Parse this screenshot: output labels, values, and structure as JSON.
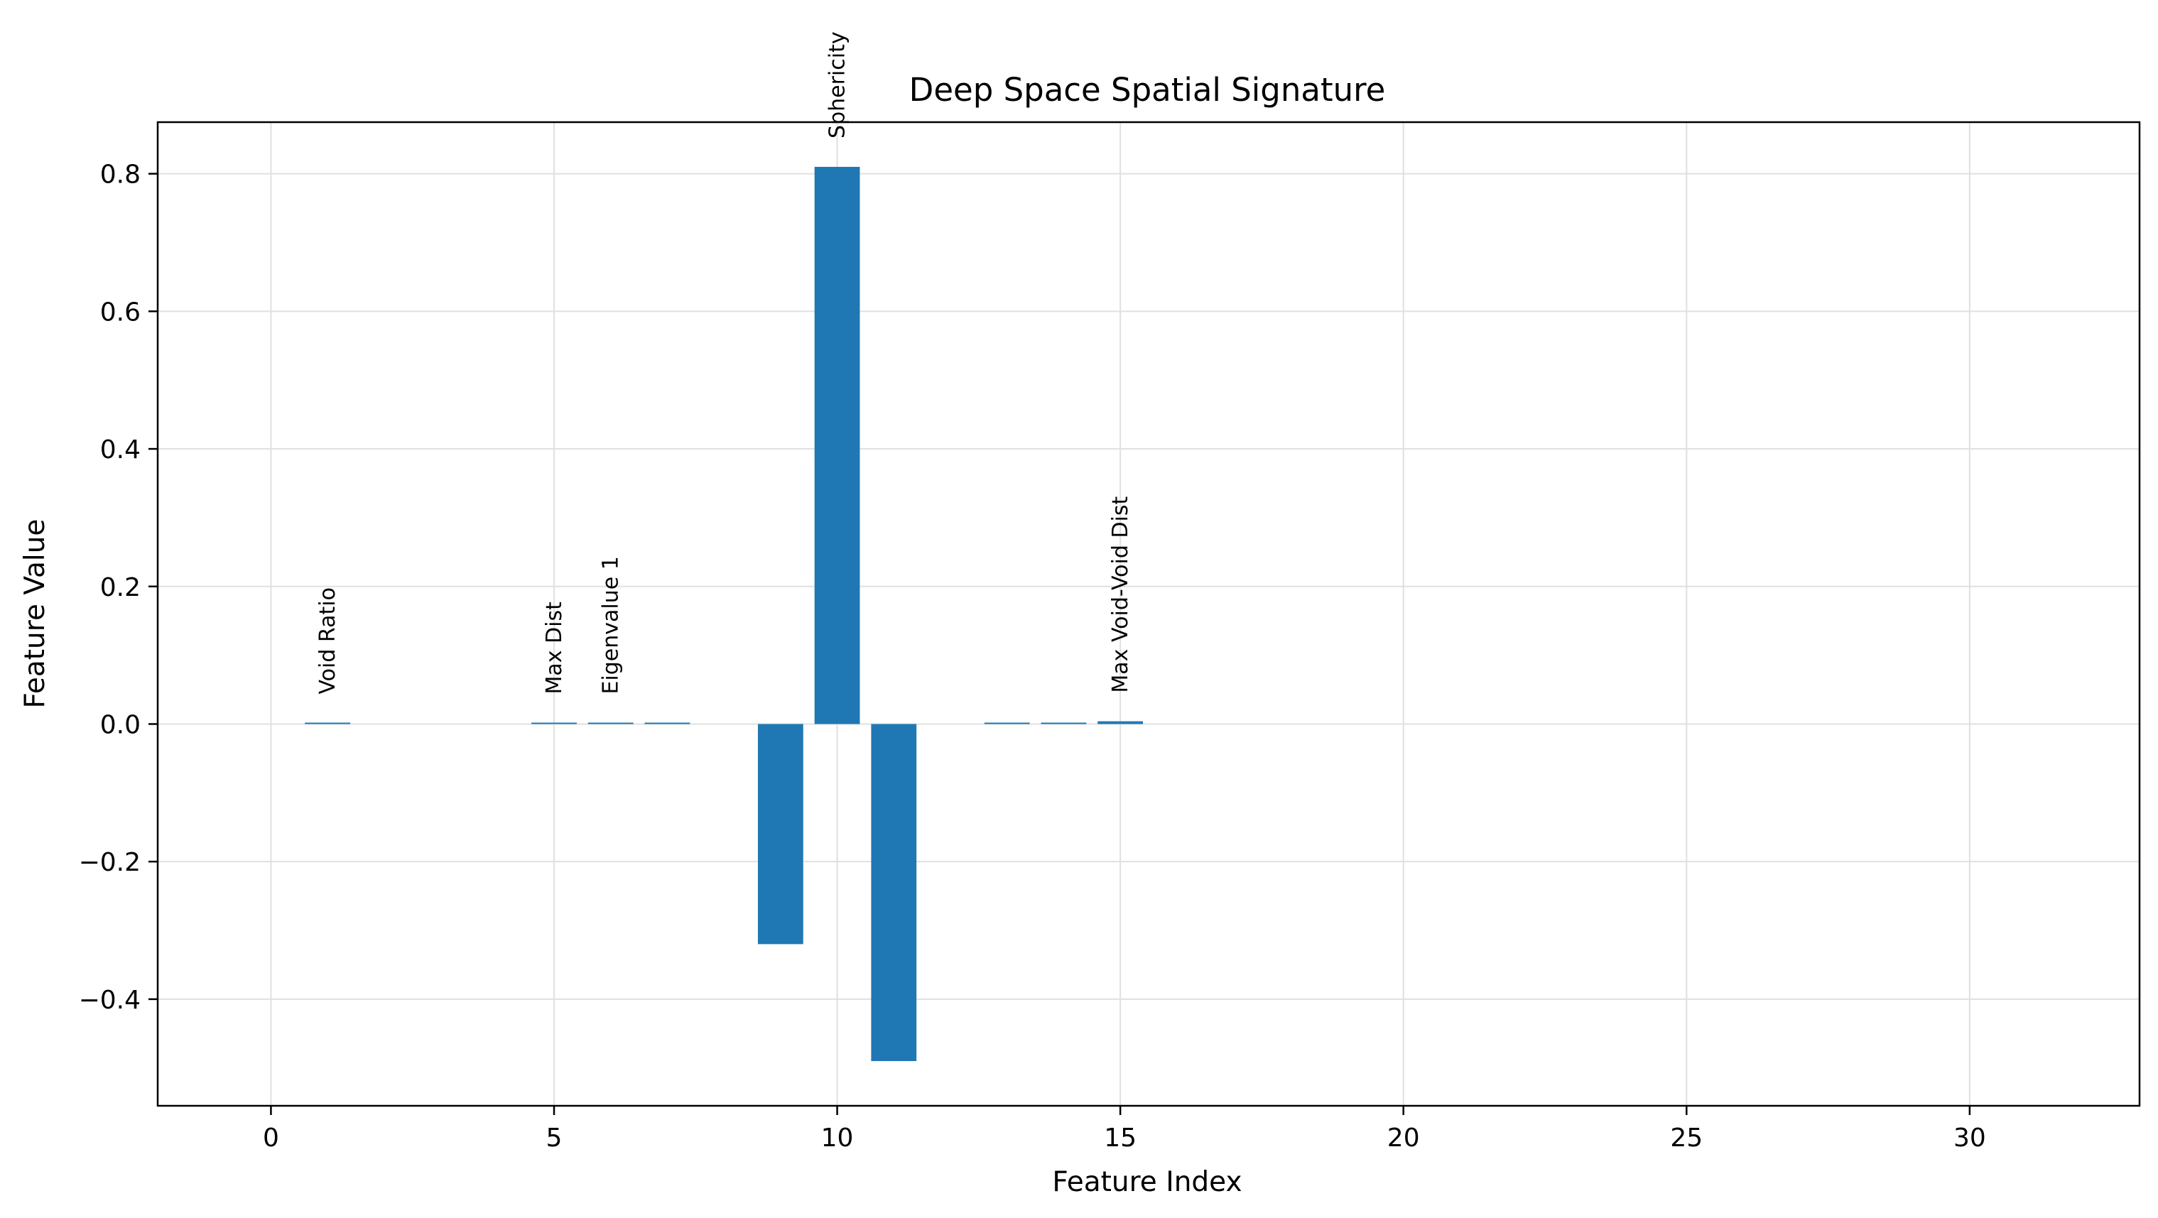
{
  "chart_data": {
    "type": "bar",
    "title": "Deep Space Spatial Signature",
    "xlabel": "Feature Index",
    "ylabel": "Feature Value",
    "xlim": [
      -2,
      33
    ],
    "ylim": [
      -0.555,
      0.875
    ],
    "xticks": [
      0,
      5,
      10,
      15,
      20,
      25,
      30
    ],
    "yticks": [
      -0.4,
      -0.2,
      0.0,
      0.2,
      0.4,
      0.6,
      0.8
    ],
    "ytick_labels": [
      "−0.4",
      "−0.2",
      "0.0",
      "0.2",
      "0.4",
      "0.6",
      "0.8"
    ],
    "grid": true,
    "bar_color": "#1f77b4",
    "bars": [
      {
        "x": 1,
        "value": 0.002
      },
      {
        "x": 5,
        "value": 0.002
      },
      {
        "x": 6,
        "value": 0.002
      },
      {
        "x": 7,
        "value": 0.001
      },
      {
        "x": 9,
        "value": -0.32
      },
      {
        "x": 10,
        "value": 0.81
      },
      {
        "x": 11,
        "value": -0.49
      },
      {
        "x": 13,
        "value": 0.001
      },
      {
        "x": 14,
        "value": 0.001
      },
      {
        "x": 15,
        "value": 0.004
      }
    ],
    "annotations": [
      {
        "x": 1,
        "text": "Void Ratio"
      },
      {
        "x": 5,
        "text": "Max Dist"
      },
      {
        "x": 6,
        "text": "Eigenvalue 1"
      },
      {
        "x": 10,
        "text": "Sphericity"
      },
      {
        "x": 15,
        "text": "Max Void-Void Dist"
      }
    ]
  }
}
